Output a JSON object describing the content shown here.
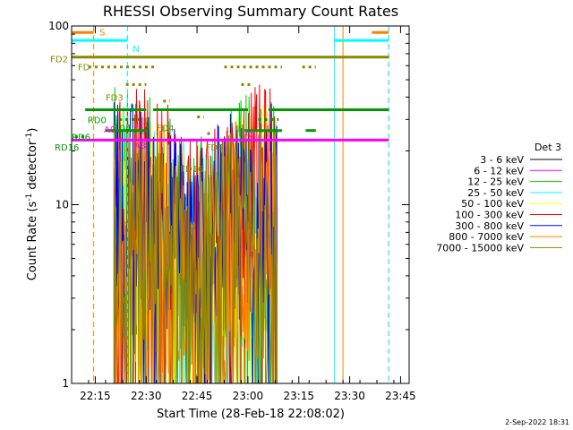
{
  "chart_data": {
    "type": "line",
    "title": "RHESSI Observing Summary Count Rates",
    "xlabel": "Start Time (28-Feb-18 22:08:02)",
    "ylabel": "Count Rate (s⁻¹ detector⁻¹)",
    "ylabel_parts": {
      "main": "Count Rate (s",
      "sup1": "-1",
      "mid": " detector",
      "sup2": "-1",
      "end": ")"
    },
    "yscale": "log",
    "ylim": [
      1,
      100
    ],
    "xlim_minutes": [
      0,
      99.5
    ],
    "x_ticks": [
      {
        "label": "22:15",
        "min": 6.97
      },
      {
        "label": "22:30",
        "min": 21.97
      },
      {
        "label": "22:45",
        "min": 36.97
      },
      {
        "label": "23:00",
        "min": 51.97
      },
      {
        "label": "23:15",
        "min": 66.97
      },
      {
        "label": "23:30",
        "min": 81.97
      },
      {
        "label": "23:45",
        "min": 96.97
      }
    ],
    "y_ticks": [
      {
        "label": "1",
        "value": 1
      },
      {
        "label": "10",
        "value": 10
      },
      {
        "label": "100",
        "value": 100
      }
    ],
    "legend_title": "Det 3",
    "series": [
      {
        "name": "3 - 6 keV",
        "color": "#000000",
        "base": 0,
        "spread": 0
      },
      {
        "name": "6 - 12 keV",
        "color": "#ff00ff",
        "base": 0,
        "spread": 0
      },
      {
        "name": "12 - 25 keV",
        "color": "#00cc00",
        "base": 8,
        "spread": 0.7
      },
      {
        "name": "25 - 50 keV",
        "color": "#00ffff",
        "base": 7,
        "spread": 0.7
      },
      {
        "name": "50 - 100 keV",
        "color": "#ffff00",
        "base": 7,
        "spread": 0.7
      },
      {
        "name": "100 - 300 keV",
        "color": "#ff0000",
        "base": 12,
        "spread": 0.55
      },
      {
        "name": "300 - 800 keV",
        "color": "#0000ff",
        "base": 9,
        "spread": 0.6
      },
      {
        "name": "800 - 7000 keV",
        "color": "#ff8000",
        "base": 5,
        "spread": 0.7
      },
      {
        "name": "7000 - 15000 keV",
        "color": "#888800",
        "base": 6,
        "spread": 0.7
      }
    ],
    "flag_labels": [
      {
        "text": "S",
        "color": "#ff8000",
        "min": 8.2,
        "y": 93
      },
      {
        "text": "N",
        "color": "#00ffff",
        "min": 18,
        "y": 75
      },
      {
        "text": "FD",
        "color": "#888800",
        "min": 1.8,
        "y": 59
      },
      {
        "text": "FD2",
        "color": "#888800",
        "min": -6.3,
        "y": 65.5
      },
      {
        "text": "FD3",
        "color": "#888800",
        "min": 10,
        "y": 40
      },
      {
        "text": "FD4",
        "color": "#888800",
        "min": 25,
        "y": 27
      },
      {
        "text": "FD5",
        "color": "#888800",
        "min": 39.5,
        "y": 21
      },
      {
        "text": "FD16",
        "color": "#888800",
        "min": 32,
        "y": 16
      },
      {
        "text": "RD0",
        "color": "#009900",
        "min": 4.7,
        "y": 30
      },
      {
        "text": "RD4",
        "color": "#009900",
        "min": 12,
        "y": 27
      },
      {
        "text": "RD6",
        "color": "#009900",
        "min": 0,
        "y": 24
      },
      {
        "text": "RD16",
        "color": "#009900",
        "min": -5,
        "y": 21
      },
      {
        "text": "A0",
        "color": "#ff00ff",
        "min": 9.5,
        "y": 26.5
      },
      {
        "text": "A1",
        "color": "#ff00ff",
        "min": 51,
        "y": 25
      },
      {
        "text": "A3",
        "color": "#ff00ff",
        "min": 18.5,
        "y": 21.5
      }
    ],
    "flag_bars": [
      {
        "color": "#ff8000",
        "y": 92,
        "pattern": "solid",
        "segments": [
          [
            0,
            6.5
          ],
          [
            88.5,
            93.5
          ]
        ]
      },
      {
        "color": "#00ffff",
        "y": 83,
        "pattern": "solid",
        "segments": [
          [
            0,
            16.5
          ],
          [
            77.5,
            93.5
          ]
        ]
      },
      {
        "color": "#888800",
        "y": 67,
        "pattern": "solid",
        "segments": [
          [
            0,
            93.5
          ]
        ]
      },
      {
        "color": "#888800",
        "y": 59,
        "pattern": "dots",
        "segments": [
          [
            5,
            25
          ],
          [
            45,
            62
          ],
          [
            68,
            72
          ]
        ]
      },
      {
        "color": "#888800",
        "y": 47,
        "pattern": "dots",
        "segments": [
          [
            16,
            22
          ],
          [
            50,
            53
          ]
        ]
      },
      {
        "color": "#888800",
        "y": 38,
        "pattern": "dots",
        "segments": [
          [
            27,
            29
          ]
        ]
      },
      {
        "color": "#888800",
        "y": 31,
        "pattern": "dots",
        "segments": [
          [
            37,
            39
          ]
        ]
      },
      {
        "color": "#888800",
        "y": 25,
        "pattern": "dots",
        "segments": [
          [
            40,
            41
          ]
        ]
      },
      {
        "color": "#888800",
        "y": 20,
        "pattern": "dots",
        "segments": []
      },
      {
        "color": "#009900",
        "y": 34,
        "pattern": "solid",
        "segments": [
          [
            4,
            22
          ],
          [
            24,
            52
          ],
          [
            58,
            93.5
          ]
        ]
      },
      {
        "color": "#009900",
        "y": 30,
        "pattern": "dots",
        "segments": [
          [
            14,
            20
          ],
          [
            55,
            61
          ]
        ]
      },
      {
        "color": "#009900",
        "y": 26,
        "pattern": "solid",
        "segments": [
          [
            10,
            22
          ],
          [
            51,
            62
          ],
          [
            69,
            72
          ]
        ]
      },
      {
        "color": "#009900",
        "y": 24,
        "pattern": "dots",
        "segments": [
          [
            1,
            4
          ]
        ]
      },
      {
        "color": "#ff00ff",
        "y": 23,
        "pattern": "solid",
        "segments": [
          [
            0,
            93.5
          ]
        ]
      }
    ],
    "vlines": [
      {
        "min": 6.5,
        "color": "#ff8000",
        "style": "dash"
      },
      {
        "min": 16.5,
        "color": "#00ffff",
        "style": "dash"
      },
      {
        "min": 77.5,
        "color": "#00ffff",
        "style": "solid"
      },
      {
        "min": 80,
        "color": "#ff8000",
        "style": "solid"
      },
      {
        "min": 93.5,
        "color": "#ff8000",
        "style": "dash"
      },
      {
        "min": 93.5,
        "color": "#00ffff",
        "style": "dash"
      },
      {
        "min": 0,
        "color": "#00ffff",
        "style": "solid"
      }
    ],
    "data_window_min": [
      12.5,
      60.5
    ]
  },
  "footer": {
    "timestamp": "2-Sep-2022 18:31"
  }
}
